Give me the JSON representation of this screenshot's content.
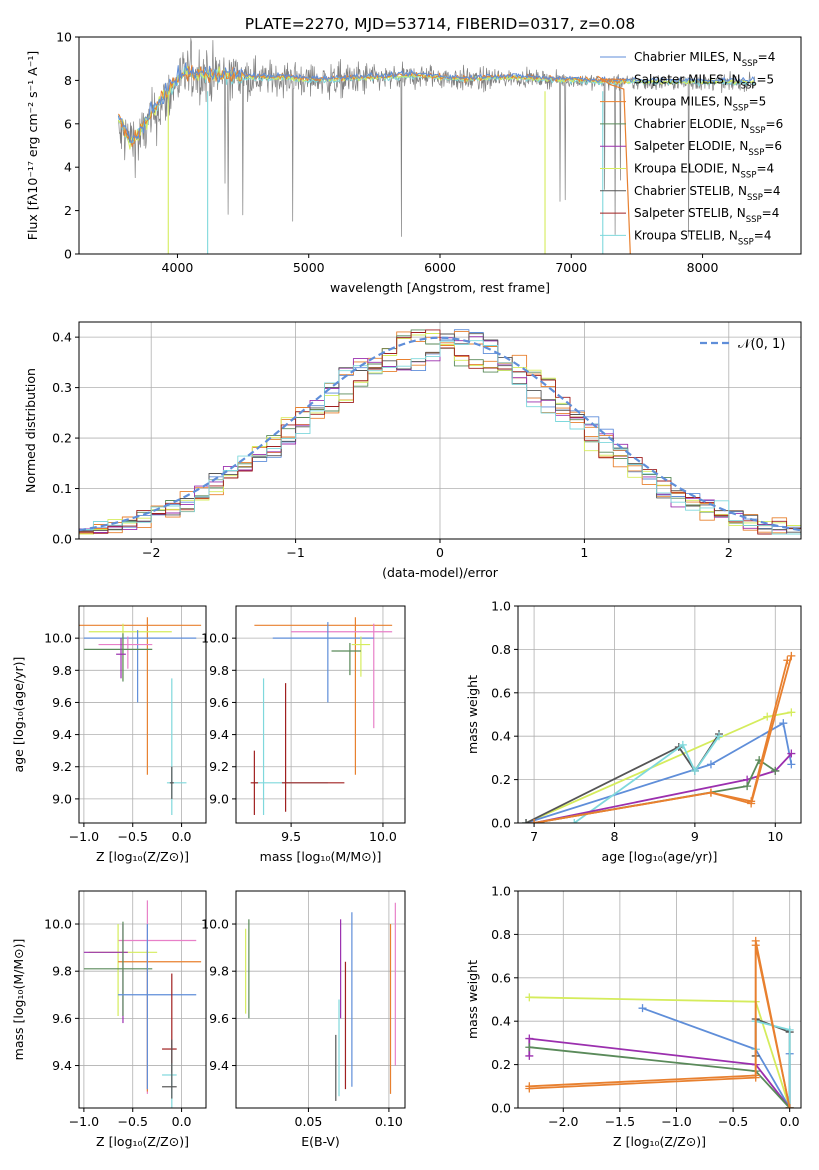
{
  "figure": {
    "title": "PLATE=2270, MJD=53714, FIBERID=0317, z=0.08"
  },
  "colors": {
    "chabrier_miles": "#5f8ed9",
    "salpeter_miles": "#e8802f",
    "kroupa_miles": "#e8802f",
    "chabrier_elodie": "#5a8a5a",
    "salpeter_elodie": "#9b2fae",
    "kroupa_elodie": "#d5ec5c",
    "chabrier_stelib": "#555555",
    "salpeter_stelib": "#a02020",
    "kroupa_stelib": "#7fd8dc",
    "pink": "#e880c8",
    "data": "#808080"
  },
  "chart_data": [
    {
      "id": "spectrum",
      "type": "line",
      "title": "PLATE=2270, MJD=53714, FIBERID=0317, z=0.08",
      "xlabel": "wavelength [Angstrom, rest frame]",
      "ylabel": "Flux [fλ10⁻¹⁷ erg cm⁻² s⁻¹ A⁻¹]",
      "xlim": [
        3250,
        8750
      ],
      "ylim": [
        0,
        10
      ],
      "xticks": [
        "4000",
        "5000",
        "6000",
        "7000",
        "8000"
      ],
      "yticks": [
        "0",
        "2",
        "4",
        "6",
        "8",
        "10"
      ],
      "legend_position": "top-right",
      "legend": [
        "Chabrier MILES, N_SSP=4",
        "Salpeter MILES, N_SSP=5",
        "Kroupa MILES, N_SSP=5",
        "Chabrier ELODIE, N_SSP=6",
        "Salpeter ELODIE, N_SSP=6",
        "Kroupa ELODIE, N_SSP=4",
        "Chabrier STELIB, N_SSP=4",
        "Salpeter STELIB, N_SSP=4",
        "Kroupa STELIB, N_SSP=4"
      ],
      "series": [
        {
          "key": "data",
          "x": [
            3550,
            3700,
            3850,
            4000,
            4100,
            4300,
            4500,
            4700,
            4900,
            5100,
            5300,
            5500,
            5700,
            5900,
            6100,
            6300,
            6500,
            6700,
            6900,
            7100,
            7300,
            7500,
            7700,
            7900,
            8100,
            8300
          ],
          "y": [
            5.5,
            5.2,
            6.6,
            7.9,
            8.4,
            8.2,
            8.2,
            8.1,
            8.1,
            8.0,
            8.0,
            8.1,
            8.1,
            8.2,
            8.1,
            8.0,
            8.1,
            8.1,
            8.0,
            8.0,
            7.9,
            7.9,
            7.9,
            7.9,
            7.9,
            7.9
          ]
        },
        {
          "key": "model",
          "x": [
            3550,
            3650,
            3800,
            3950,
            4050,
            4200,
            4400,
            4600,
            4800,
            5000,
            5200,
            5400,
            5600,
            5800,
            6000,
            6200,
            6400,
            6600,
            6800,
            7000,
            7200,
            7400,
            7600,
            7800,
            8000,
            8200,
            8400
          ],
          "y": [
            6.3,
            5.0,
            6.4,
            7.7,
            8.3,
            8.2,
            8.2,
            8.1,
            8.1,
            8.0,
            8.0,
            8.1,
            8.1,
            8.2,
            8.1,
            8.0,
            8.1,
            8.1,
            8.0,
            8.0,
            7.9,
            7.9,
            7.9,
            7.9,
            7.9,
            7.9,
            7.9
          ]
        },
        {
          "key": "cutoff",
          "x": [
            7200,
            7300,
            7400,
            7450
          ],
          "y": [
            8.2,
            7.8,
            7.6,
            0.0
          ]
        }
      ]
    },
    {
      "id": "residuals",
      "type": "step",
      "xlabel": "(data-model)/error",
      "ylabel": "Normed distribution",
      "xlim": [
        -2.5,
        2.5
      ],
      "ylim": [
        0,
        0.43
      ],
      "xticks": [
        "−2",
        "−1",
        "0",
        "1",
        "2"
      ],
      "yticks": [
        "0.0",
        "0.1",
        "0.2",
        "0.3",
        "0.4"
      ],
      "legend": [
        "𝒩(0, 1)"
      ],
      "legend_position": "top-right",
      "bin_width": 0.1
    },
    {
      "id": "age_vs_Z",
      "type": "errorbar",
      "xlabel": "Z [log₁₀(Z/Z⊙)]",
      "ylabel": "age  [log₁₀(age/yr)]",
      "xlim": [
        -1.05,
        0.25
      ],
      "ylim": [
        8.85,
        10.2
      ],
      "xticks": [
        "−1.0",
        "−0.5",
        "0.0"
      ],
      "yticks": [
        "9.0",
        "9.2",
        "9.4",
        "9.6",
        "9.8",
        "10.0"
      ],
      "points": [
        {
          "c": "salpeter_miles",
          "x": -0.35,
          "y": 10.08,
          "xerr": [
            0.85,
            0.55
          ],
          "yerr": [
            0.93,
            0.05
          ]
        },
        {
          "c": "kroupa_elodie",
          "x": -0.6,
          "y": 10.04,
          "xerr": [
            0.35,
            0.5
          ],
          "yerr": [
            0.3,
            0.05
          ]
        },
        {
          "c": "chabrier_miles",
          "x": -0.45,
          "y": 10.0,
          "xerr": [
            0.55,
            0.6
          ],
          "yerr": [
            0.4,
            0.05
          ]
        },
        {
          "c": "pink",
          "x": -0.55,
          "y": 9.96,
          "xerr": [
            0.3,
            0.25
          ],
          "yerr": [
            0.15,
            0.05
          ]
        },
        {
          "c": "chabrier_elodie",
          "x": -0.6,
          "y": 9.93,
          "xerr": [
            0.4,
            0.3
          ],
          "yerr": [
            0.2,
            0.1
          ]
        },
        {
          "c": "salpeter_elodie",
          "x": -0.62,
          "y": 9.9,
          "xerr": [
            0.05,
            0.05
          ],
          "yerr": [
            0.15,
            0.1
          ]
        },
        {
          "c": "kroupa_stelib",
          "x": -0.1,
          "y": 9.1,
          "xerr": [
            0.05,
            0.15
          ],
          "yerr": [
            0.2,
            0.65
          ]
        },
        {
          "c": "chabrier_stelib",
          "x": -0.1,
          "y": 9.1,
          "xerr": [
            0.02,
            0.02
          ],
          "yerr": [
            0.1,
            0.1
          ]
        }
      ]
    },
    {
      "id": "age_vs_mass",
      "type": "errorbar",
      "xlabel": "mass [log₁₀(M/M⊙)]",
      "ylabel": "",
      "xlim": [
        9.2,
        10.12
      ],
      "ylim": [
        8.85,
        10.2
      ],
      "xticks": [
        "9.5",
        "10.0"
      ],
      "yticks": [
        "9.0",
        "9.2",
        "9.4",
        "9.6",
        "9.8",
        "10.0"
      ],
      "points": [
        {
          "c": "salpeter_miles",
          "x": 9.85,
          "y": 10.08,
          "xerr": [
            0.55,
            0.2
          ],
          "yerr": [
            0.93,
            0.05
          ]
        },
        {
          "c": "pink",
          "x": 9.95,
          "y": 10.04,
          "xerr": [
            0.45,
            0.1
          ],
          "yerr": [
            0.6,
            0.05
          ]
        },
        {
          "c": "chabrier_miles",
          "x": 9.7,
          "y": 10.0,
          "xerr": [
            0.3,
            0.25
          ],
          "yerr": [
            0.4,
            0.1
          ]
        },
        {
          "c": "kroupa_elodie",
          "x": 9.88,
          "y": 9.96,
          "xerr": [
            0.05,
            0.05
          ],
          "yerr": [
            0.2,
            0.05
          ]
        },
        {
          "c": "chabrier_elodie",
          "x": 9.82,
          "y": 9.92,
          "xerr": [
            0.1,
            0.06
          ],
          "yerr": [
            0.15,
            0.05
          ]
        },
        {
          "c": "kroupa_stelib",
          "x": 9.35,
          "y": 9.1,
          "xerr": [
            0.05,
            0.35
          ],
          "yerr": [
            0.2,
            0.65
          ]
        },
        {
          "c": "salpeter_stelib",
          "x": 9.3,
          "y": 9.1,
          "xerr": [
            0.02,
            0.02
          ],
          "yerr": [
            0.2,
            0.2
          ]
        },
        {
          "c": "salpeter_stelib",
          "x": 9.47,
          "y": 9.1,
          "xerr": [
            0.02,
            0.32
          ],
          "yerr": [
            0.18,
            0.62
          ]
        }
      ]
    },
    {
      "id": "weight_vs_age",
      "type": "line",
      "xlabel": "age  [log₁₀(age/yr)]",
      "ylabel": "mass weight",
      "xlim": [
        6.8,
        10.32
      ],
      "ylim": [
        0,
        1.0
      ],
      "xticks": [
        "7",
        "8",
        "9",
        "10"
      ],
      "yticks": [
        "0.0",
        "0.2",
        "0.4",
        "0.6",
        "0.8",
        "1.0"
      ],
      "series": [
        {
          "c": "kroupa_elodie",
          "x": [
            6.9,
            9.9,
            10.2
          ],
          "y": [
            0.0,
            0.49,
            0.51
          ]
        },
        {
          "c": "chabrier_miles",
          "x": [
            6.9,
            9.2,
            10.1,
            10.2
          ],
          "y": [
            0.0,
            0.27,
            0.46,
            0.27
          ]
        },
        {
          "c": "chabrier_stelib",
          "x": [
            6.9,
            8.8,
            9.0,
            9.3
          ],
          "y": [
            0.0,
            0.35,
            0.24,
            0.41
          ]
        },
        {
          "c": "kroupa_stelib",
          "x": [
            7.5,
            8.85,
            9.0,
            9.3
          ],
          "y": [
            0.0,
            0.36,
            0.24,
            0.4
          ]
        },
        {
          "c": "salpeter_elodie",
          "x": [
            7.0,
            9.65,
            10.0,
            10.2
          ],
          "y": [
            0.0,
            0.2,
            0.24,
            0.32
          ]
        },
        {
          "c": "chabrier_elodie",
          "x": [
            7.0,
            9.65,
            9.8,
            10.0
          ],
          "y": [
            0.0,
            0.17,
            0.29,
            0.24
          ]
        },
        {
          "c": "salpeter_miles",
          "x": [
            7.0,
            9.2,
            9.7,
            10.2
          ],
          "y": [
            0.0,
            0.14,
            0.09,
            0.77
          ]
        },
        {
          "c": "kroupa_miles",
          "x": [
            7.0,
            9.2,
            9.7,
            10.15
          ],
          "y": [
            0.0,
            0.14,
            0.1,
            0.75
          ]
        }
      ]
    },
    {
      "id": "mass_vs_Z",
      "type": "errorbar",
      "xlabel": "Z [log₁₀(Z/Z⊙)]",
      "ylabel": "mass [log₁₀(M/M⊙)]",
      "xlim": [
        -1.05,
        0.25
      ],
      "ylim": [
        9.22,
        10.14
      ],
      "xticks": [
        "−1.0",
        "−0.5",
        "0.0"
      ],
      "yticks": [
        "9.4",
        "9.6",
        "9.8",
        "10.0"
      ],
      "points": [
        {
          "c": "pink",
          "x": -0.35,
          "y": 9.93,
          "xerr": [
            0.3,
            0.5
          ],
          "yerr": [
            0.65,
            0.17
          ]
        },
        {
          "c": "kroupa_elodie",
          "x": -0.65,
          "y": 9.88,
          "xerr": [
            0.3,
            0.4
          ],
          "yerr": [
            0.27,
            0.12
          ]
        },
        {
          "c": "salpeter_elodie",
          "x": -0.6,
          "y": 9.88,
          "xerr": [
            0.4,
            0.05
          ],
          "yerr": [
            0.3,
            0.12
          ]
        },
        {
          "c": "salpeter_miles",
          "x": -0.35,
          "y": 9.84,
          "xerr": [
            0.3,
            0.55
          ],
          "yerr": [
            0.55,
            0.05
          ]
        },
        {
          "c": "chabrier_elodie",
          "x": -0.6,
          "y": 9.81,
          "xerr": [
            0.4,
            0.3
          ],
          "yerr": [
            0.2,
            0.2
          ]
        },
        {
          "c": "chabrier_miles",
          "x": -0.35,
          "y": 9.7,
          "xerr": [
            0.3,
            0.5
          ],
          "yerr": [
            0.4,
            0.3
          ]
        },
        {
          "c": "salpeter_stelib",
          "x": -0.1,
          "y": 9.47,
          "xerr": [
            0.1,
            0.05
          ],
          "yerr": [
            0.1,
            0.32
          ]
        },
        {
          "c": "kroupa_stelib",
          "x": -0.1,
          "y": 9.36,
          "xerr": [
            0.1,
            0.05
          ],
          "yerr": [
            0.15,
            0.05
          ]
        },
        {
          "c": "chabrier_stelib",
          "x": -0.1,
          "y": 9.31,
          "xerr": [
            0.1,
            0.05
          ],
          "yerr": [
            0.05,
            0.2
          ]
        }
      ]
    },
    {
      "id": "mass_vs_ebv",
      "type": "errorbar",
      "xlabel": "E(B-V)",
      "ylabel": "",
      "xlim": [
        0.005,
        0.11
      ],
      "ylim": [
        9.22,
        10.14
      ],
      "xticks": [
        "0.05",
        "0.10"
      ],
      "yticks": [
        "9.4",
        "9.6",
        "9.8",
        "10.0"
      ],
      "vlines": [
        {
          "c": "kroupa_elodie",
          "x": 0.011,
          "y": [
            9.62,
            9.98
          ]
        },
        {
          "c": "chabrier_elodie",
          "x": 0.013,
          "y": [
            9.6,
            10.02
          ]
        },
        {
          "c": "salpeter_elodie",
          "x": 0.07,
          "y": [
            9.6,
            10.02
          ]
        },
        {
          "c": "kroupa_stelib",
          "x": 0.069,
          "y": [
            9.27,
            9.68
          ]
        },
        {
          "c": "chabrier_stelib",
          "x": 0.067,
          "y": [
            9.25,
            9.53
          ]
        },
        {
          "c": "salpeter_stelib",
          "x": 0.073,
          "y": [
            9.3,
            9.84
          ]
        },
        {
          "c": "chabrier_miles",
          "x": 0.077,
          "y": [
            9.31,
            10.05
          ]
        },
        {
          "c": "salpeter_miles",
          "x": 0.101,
          "y": [
            9.28,
            10.0
          ]
        },
        {
          "c": "pink",
          "x": 0.104,
          "y": [
            9.4,
            10.09
          ]
        }
      ]
    },
    {
      "id": "weight_vs_Z",
      "type": "line",
      "xlabel": "Z [log₁₀(Z/Z⊙)]",
      "ylabel": "mass weight",
      "xlim": [
        -2.4,
        0.1
      ],
      "ylim": [
        0,
        1.0
      ],
      "xticks": [
        "−2.0",
        "−1.5",
        "−1.0",
        "−0.5",
        "0.0"
      ],
      "yticks": [
        "0.0",
        "0.2",
        "0.4",
        "0.6",
        "0.8",
        "1.0"
      ],
      "series": [
        {
          "c": "kroupa_elodie",
          "x": [
            -2.3,
            -0.3,
            0.0
          ],
          "y": [
            0.51,
            0.49,
            0.0
          ]
        },
        {
          "c": "chabrier_miles",
          "x": [
            -1.3,
            -0.3,
            0.0,
            0.0
          ],
          "y": [
            0.46,
            0.27,
            0.0,
            0.25
          ]
        },
        {
          "c": "salpeter_elodie",
          "x": [
            -2.3,
            -2.3,
            -0.3,
            0.0
          ],
          "y": [
            0.24,
            0.32,
            0.2,
            0.0
          ]
        },
        {
          "c": "chabrier_elodie",
          "x": [
            -2.3,
            -0.3,
            0.0
          ],
          "y": [
            0.28,
            0.17,
            0.0
          ]
        },
        {
          "c": "chabrier_stelib",
          "x": [
            -0.3,
            -0.3,
            0.0,
            0.0
          ],
          "y": [
            0.24,
            0.41,
            0.35,
            0.0
          ]
        },
        {
          "c": "kroupa_stelib",
          "x": [
            -0.3,
            -0.3,
            0.0,
            0.0
          ],
          "y": [
            0.27,
            0.4,
            0.36,
            0.0
          ]
        },
        {
          "c": "salpeter_miles",
          "x": [
            -2.3,
            -0.3,
            -0.3,
            0.0
          ],
          "y": [
            0.09,
            0.14,
            0.77,
            0.0
          ]
        },
        {
          "c": "kroupa_miles",
          "x": [
            -2.3,
            -0.3,
            -0.3,
            0.0
          ],
          "y": [
            0.1,
            0.15,
            0.75,
            0.0
          ]
        }
      ]
    }
  ]
}
